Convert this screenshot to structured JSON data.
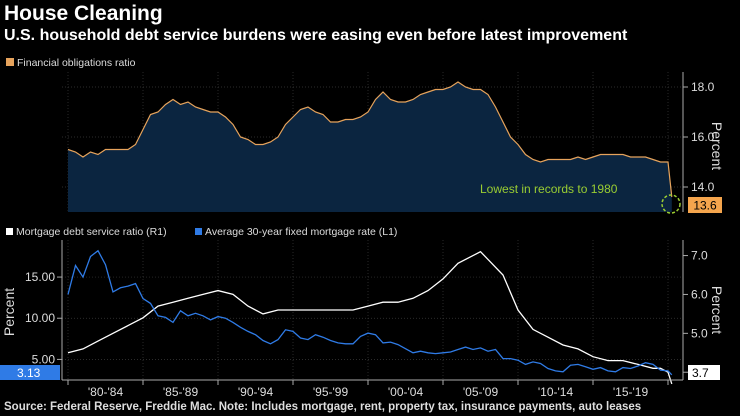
{
  "header": {
    "title": "House Cleaning",
    "subtitle": "U.S. household debt service burdens were easing even before latest improvement"
  },
  "footer": {
    "source": "Source: Federal Reserve, Freddie Mac. Note: Includes mortgage, rent, property tax, insurance payments, auto leases"
  },
  "colors": {
    "background": "#000000",
    "fob_line": "#e6a35c",
    "fob_fill": "#0b2540",
    "fob_label_bg": "#f5a54d",
    "mortgage_line": "#ffffff",
    "rate_line": "#2f7be6",
    "annotation": "#9acd32",
    "grid": "#3a3a3a"
  },
  "chart_data": [
    {
      "type": "area",
      "legend": "Financial obligations ratio",
      "ylabel": "Percent",
      "ylim": [
        13.0,
        18.6
      ],
      "yticks": [
        "18.0",
        "16.0",
        "14.0"
      ],
      "ytick_values": [
        18.0,
        16.0,
        14.0
      ],
      "last_value_label": "13.6",
      "annotation": "Lowest in records to 1980",
      "x": [
        1980.0,
        1980.5,
        1981.0,
        1981.5,
        1982.0,
        1982.5,
        1983.0,
        1983.5,
        1984.0,
        1984.5,
        1985.0,
        1985.5,
        1986.0,
        1986.5,
        1987.0,
        1987.5,
        1988.0,
        1988.5,
        1989.0,
        1989.5,
        1990.0,
        1990.5,
        1991.0,
        1991.5,
        1992.0,
        1992.5,
        1993.0,
        1993.5,
        1994.0,
        1994.5,
        1995.0,
        1995.5,
        1996.0,
        1996.5,
        1997.0,
        1997.5,
        1998.0,
        1998.5,
        1999.0,
        1999.5,
        2000.0,
        2000.5,
        2001.0,
        2001.5,
        2002.0,
        2002.5,
        2003.0,
        2003.5,
        2004.0,
        2004.5,
        2005.0,
        2005.5,
        2006.0,
        2006.5,
        2007.0,
        2007.5,
        2008.0,
        2008.5,
        2009.0,
        2009.5,
        2010.0,
        2010.5,
        2011.0,
        2011.5,
        2012.0,
        2012.5,
        2013.0,
        2013.5,
        2014.0,
        2014.5,
        2015.0,
        2015.5,
        2016.0,
        2016.5,
        2017.0,
        2017.5,
        2018.0,
        2018.5,
        2019.0,
        2019.5,
        2020.0,
        2020.25
      ],
      "values": [
        15.5,
        15.4,
        15.2,
        15.4,
        15.3,
        15.5,
        15.5,
        15.5,
        15.5,
        15.7,
        16.3,
        16.9,
        17.0,
        17.3,
        17.5,
        17.3,
        17.4,
        17.2,
        17.1,
        17.0,
        17.0,
        16.8,
        16.5,
        16.0,
        15.9,
        15.7,
        15.7,
        15.8,
        16.0,
        16.5,
        16.8,
        17.1,
        17.2,
        17.0,
        16.9,
        16.6,
        16.6,
        16.7,
        16.7,
        16.8,
        17.0,
        17.5,
        17.8,
        17.5,
        17.4,
        17.4,
        17.5,
        17.7,
        17.8,
        17.9,
        17.9,
        18.0,
        18.2,
        18.0,
        17.9,
        17.9,
        17.7,
        17.2,
        16.6,
        16.0,
        15.7,
        15.3,
        15.1,
        15.0,
        15.1,
        15.1,
        15.1,
        15.1,
        15.2,
        15.1,
        15.2,
        15.3,
        15.3,
        15.3,
        15.3,
        15.2,
        15.2,
        15.2,
        15.1,
        15.0,
        15.0,
        13.6
      ]
    },
    {
      "type": "line",
      "legend": [
        "Mortgage debt service ratio (R1)",
        "Average 30-year fixed mortgage rate (L1)"
      ],
      "ylabel_left": "Percent",
      "ylabel_right": "Percent",
      "ylim_left": [
        2.5,
        19.5
      ],
      "ylim_right": [
        3.8,
        7.4
      ],
      "yticks_left": [
        "15.00",
        "10.00",
        "5.00"
      ],
      "ytick_values_left": [
        15.0,
        10.0,
        5.0
      ],
      "yticks_right": [
        "7.0",
        "6.0",
        "5.0",
        "4.0"
      ],
      "ytick_values_right": [
        7.0,
        6.0,
        5.0,
        4.0
      ],
      "last_value_left": "3.13",
      "last_value_right": "3.7",
      "categories": [
        "'80-'84",
        "'85-'89",
        "'90-'94",
        "'95-'99",
        "'00-'04",
        "'05-'09",
        "'10-'14",
        "'15-'19"
      ],
      "category_starts": [
        1980,
        1985,
        1990,
        1995,
        2000,
        2005,
        2010,
        2015
      ],
      "series": [
        {
          "name": "Mortgage debt service ratio (R1)",
          "axis": "right",
          "x": [
            1980.0,
            1981.0,
            1982.0,
            1983.0,
            1984.0,
            1985.0,
            1986.0,
            1987.0,
            1988.0,
            1989.0,
            1990.0,
            1991.0,
            1992.0,
            1993.0,
            1994.0,
            1995.0,
            1996.0,
            1997.0,
            1998.0,
            1999.0,
            2000.0,
            2001.0,
            2002.0,
            2003.0,
            2004.0,
            2005.0,
            2006.0,
            2007.0,
            2007.5,
            2008.0,
            2009.0,
            2010.0,
            2011.0,
            2012.0,
            2013.0,
            2014.0,
            2015.0,
            2016.0,
            2017.0,
            2018.0,
            2019.0,
            2019.5,
            2020.0,
            2020.25
          ],
          "values": [
            4.5,
            4.6,
            4.8,
            5.0,
            5.2,
            5.4,
            5.7,
            5.8,
            5.9,
            6.0,
            6.1,
            6.0,
            5.7,
            5.5,
            5.6,
            5.6,
            5.6,
            5.6,
            5.6,
            5.6,
            5.7,
            5.8,
            5.8,
            5.9,
            6.1,
            6.4,
            6.8,
            7.0,
            7.1,
            6.9,
            6.5,
            5.6,
            5.1,
            4.9,
            4.7,
            4.6,
            4.4,
            4.3,
            4.3,
            4.2,
            4.1,
            4.1,
            4.0,
            3.7
          ]
        },
        {
          "name": "Average 30-year fixed mortgage rate (L1)",
          "axis": "left",
          "x": [
            1980.0,
            1980.5,
            1981.0,
            1981.5,
            1982.0,
            1982.5,
            1983.0,
            1983.5,
            1984.0,
            1984.5,
            1985.0,
            1985.5,
            1986.0,
            1986.5,
            1987.0,
            1987.5,
            1988.0,
            1988.5,
            1989.0,
            1989.5,
            1990.0,
            1990.5,
            1991.0,
            1991.5,
            1992.0,
            1992.5,
            1993.0,
            1993.5,
            1994.0,
            1994.5,
            1995.0,
            1995.5,
            1996.0,
            1996.5,
            1997.0,
            1997.5,
            1998.0,
            1998.5,
            1999.0,
            1999.5,
            2000.0,
            2000.5,
            2001.0,
            2001.5,
            2002.0,
            2002.5,
            2003.0,
            2003.5,
            2004.0,
            2004.5,
            2005.0,
            2005.5,
            2006.0,
            2006.5,
            2007.0,
            2007.5,
            2008.0,
            2008.5,
            2009.0,
            2009.5,
            2010.0,
            2010.5,
            2011.0,
            2011.5,
            2012.0,
            2012.5,
            2013.0,
            2013.5,
            2014.0,
            2014.5,
            2015.0,
            2015.5,
            2016.0,
            2016.5,
            2017.0,
            2017.5,
            2018.0,
            2018.5,
            2019.0,
            2019.5,
            2020.0,
            2020.25
          ],
          "values": [
            12.9,
            16.4,
            15.0,
            17.5,
            18.2,
            16.5,
            13.2,
            13.7,
            13.9,
            14.2,
            12.4,
            11.8,
            10.3,
            10.1,
            9.5,
            10.9,
            10.3,
            10.6,
            10.3,
            9.8,
            10.2,
            10.0,
            9.5,
            8.9,
            8.4,
            8.0,
            7.3,
            6.9,
            7.4,
            8.6,
            8.4,
            7.6,
            7.4,
            8.0,
            7.7,
            7.3,
            7.0,
            6.9,
            6.9,
            7.8,
            8.2,
            8.0,
            7.0,
            7.1,
            6.8,
            6.3,
            5.8,
            6.0,
            5.8,
            5.7,
            5.8,
            5.9,
            6.2,
            6.5,
            6.2,
            6.4,
            6.0,
            6.2,
            5.1,
            5.1,
            4.9,
            4.4,
            4.7,
            4.5,
            3.9,
            3.6,
            3.5,
            4.3,
            4.4,
            4.1,
            3.8,
            4.0,
            3.6,
            3.5,
            4.0,
            3.9,
            4.2,
            4.6,
            4.4,
            3.7,
            3.6,
            3.13
          ]
        }
      ]
    }
  ]
}
